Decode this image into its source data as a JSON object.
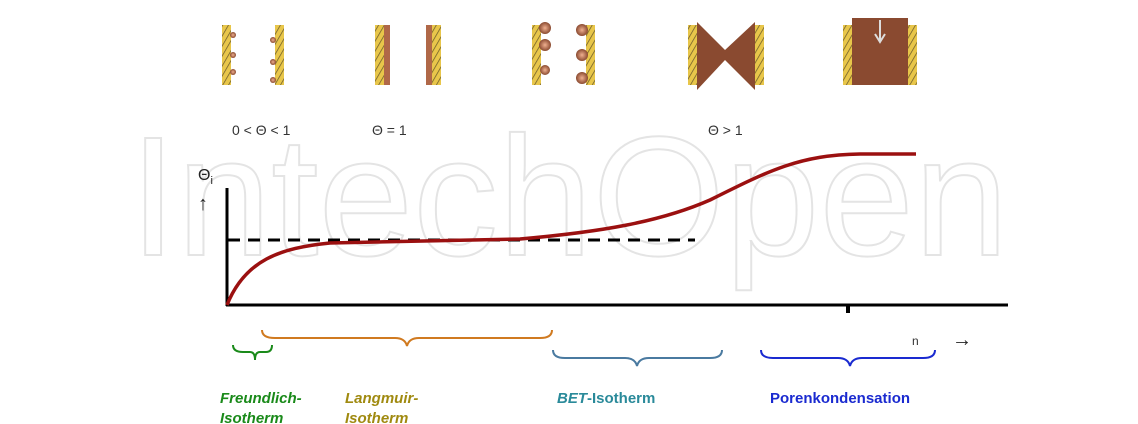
{
  "watermark": "IntechOpen",
  "coverage_labels": [
    "0 < Θ < 1",
    "Θ = 1",
    "Θ  > 1"
  ],
  "axis": {
    "y_symbol": "Θ",
    "y_subscript": "i",
    "y_arrow": "↑",
    "x_symbol": "n",
    "x_arrow": "→"
  },
  "regions": [
    {
      "line1": "Freundlich-",
      "line2": "Isotherm"
    },
    {
      "line1": "Langmuir-",
      "line2": "Isotherm"
    },
    {
      "prefix": "BET",
      "rest": "-Isotherm"
    },
    {
      "line1": "Porenkondensation"
    }
  ]
}
